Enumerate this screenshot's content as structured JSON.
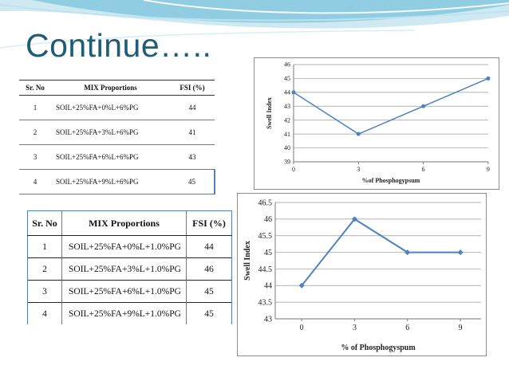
{
  "slide": {
    "title": "Continue….."
  },
  "table1": {
    "headers": [
      "Sr. No",
      "MIX Proportions",
      "FSI (%)"
    ],
    "rows": [
      [
        "1",
        "SOIL+25%FA+0%L+6%PG",
        "44"
      ],
      [
        "2",
        "SOIL+25%FA+3%L+6%PG",
        "41"
      ],
      [
        "3",
        "SOIL+25%FA+6%L+6%PG",
        "43"
      ],
      [
        "4",
        "SOIL+25%FA+9%L+6%PG",
        "45"
      ]
    ]
  },
  "table2": {
    "headers": [
      "Sr. No",
      "MIX Proportions",
      "FSI (%)"
    ],
    "rows": [
      [
        "1",
        "SOIL+25%FA+0%L+1.0%PG",
        "44"
      ],
      [
        "2",
        "SOIL+25%FA+3%L+1.0%PG",
        "46"
      ],
      [
        "3",
        "SOIL+25%FA+6%L+1.0%PG",
        "45"
      ],
      [
        "4",
        "SOIL+25%FA+9%L+1.0%PG",
        "45"
      ]
    ]
  },
  "chart_data": [
    {
      "type": "line",
      "x": [
        0,
        3,
        6,
        9
      ],
      "values": [
        44,
        41,
        43,
        45
      ],
      "xlabel": "%of Phosphogypsum",
      "ylabel": "Swell Index",
      "ylim": [
        39,
        46
      ],
      "yticks": [
        39,
        40,
        41,
        42,
        43,
        44,
        45,
        46
      ],
      "xticks": [
        0,
        3,
        6,
        9
      ],
      "grid": true,
      "color": "#4f81bd"
    },
    {
      "type": "line",
      "x": [
        0,
        3,
        6,
        9
      ],
      "values": [
        44,
        46,
        45,
        45
      ],
      "xlabel": "% of Phosphogyspum",
      "ylabel": "Swell Index",
      "ylim": [
        43,
        46.5
      ],
      "yticks": [
        43,
        43.5,
        44,
        44.5,
        45,
        45.5,
        46,
        46.5
      ],
      "xticks": [
        0,
        3,
        6,
        9
      ],
      "grid": true,
      "color": "#4f81bd"
    }
  ]
}
